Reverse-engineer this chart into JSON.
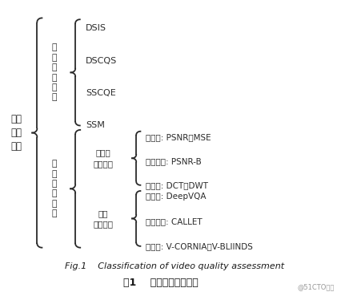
{
  "title_en": "Fig.1    Classification of video quality assessment",
  "title_cn": "图1    视频质量评价分类",
  "watermark": "@51CTO博客",
  "bg_color": "#ffffff",
  "text_color": "#2a2a2a",
  "bracket_color": "#2a2a2a",
  "root_label": "视频\n质量\n评价",
  "l1_subj": "主\n观\n质\n量\n评\n价",
  "l1_obj": "客\n观\n质\n量\n评\n价",
  "l2_nondl": "非深度\n学习方法",
  "l2_dl": "深度\n学习方法",
  "l3_subjective": [
    "DSIS",
    "DSCQS",
    "SSCQE",
    "SSM"
  ],
  "l3_nondl": [
    "全参考: PSNR、MSE",
    "部分参考: PSNR-B",
    "无参考: DCT、DWT"
  ],
  "l3_dl": [
    "全参考: DeepVQA",
    "部分参考: CALLET",
    "无参考: V-CORNIA、V-BLIINDS"
  ]
}
